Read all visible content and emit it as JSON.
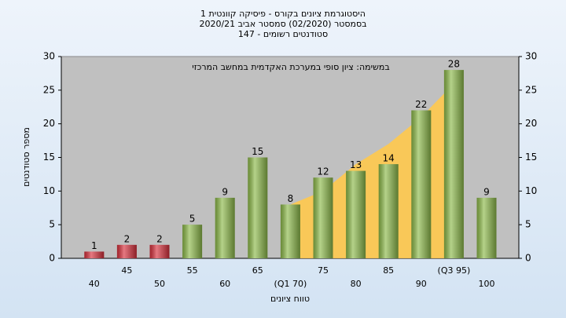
{
  "chart_data": {
    "type": "bar",
    "title": "היסטוגרמת ציונים בקורס - פיסיקה קוונטית 1",
    "subtitle": "בסמסטר  (02/2020)  סמסטר אביב 2020/21",
    "subtitle2": "סטודנטים רשומים - 147",
    "annotation": "במשימה: ציון סופי במערכת האקדמית במחשב המרכזי",
    "x_label": "טווח ציונים",
    "y_label": "מספר סטודנטים",
    "categories": [
      "40",
      "45",
      "50",
      "55",
      "60",
      "65",
      "(Q1 70)",
      "75",
      "80",
      "85",
      "90",
      "(Q3 95)",
      "100"
    ],
    "values": [
      1,
      2,
      2,
      5,
      9,
      15,
      8,
      12,
      13,
      14,
      22,
      28,
      9
    ],
    "colors": [
      "#d8303c",
      "#d8303c",
      "#d8303c",
      "#8dba4a",
      "#8dba4a",
      "#8dba4a",
      "#8dba4a",
      "#8dba4a",
      "#8dba4a",
      "#8dba4a",
      "#8dba4a",
      "#8dba4a",
      "#8dba4a"
    ],
    "band": {
      "values": [
        null,
        null,
        null,
        null,
        null,
        null,
        8,
        10,
        14,
        17,
        21,
        26,
        null
      ],
      "color": "#ffc94d"
    },
    "ylim": [
      0,
      30
    ],
    "yticks": [
      0,
      5,
      10,
      15,
      20,
      25,
      30
    ],
    "y2lim": [
      0,
      30
    ],
    "y2ticks": [
      0,
      5,
      10,
      15,
      20,
      25,
      30
    ],
    "grid": false
  }
}
